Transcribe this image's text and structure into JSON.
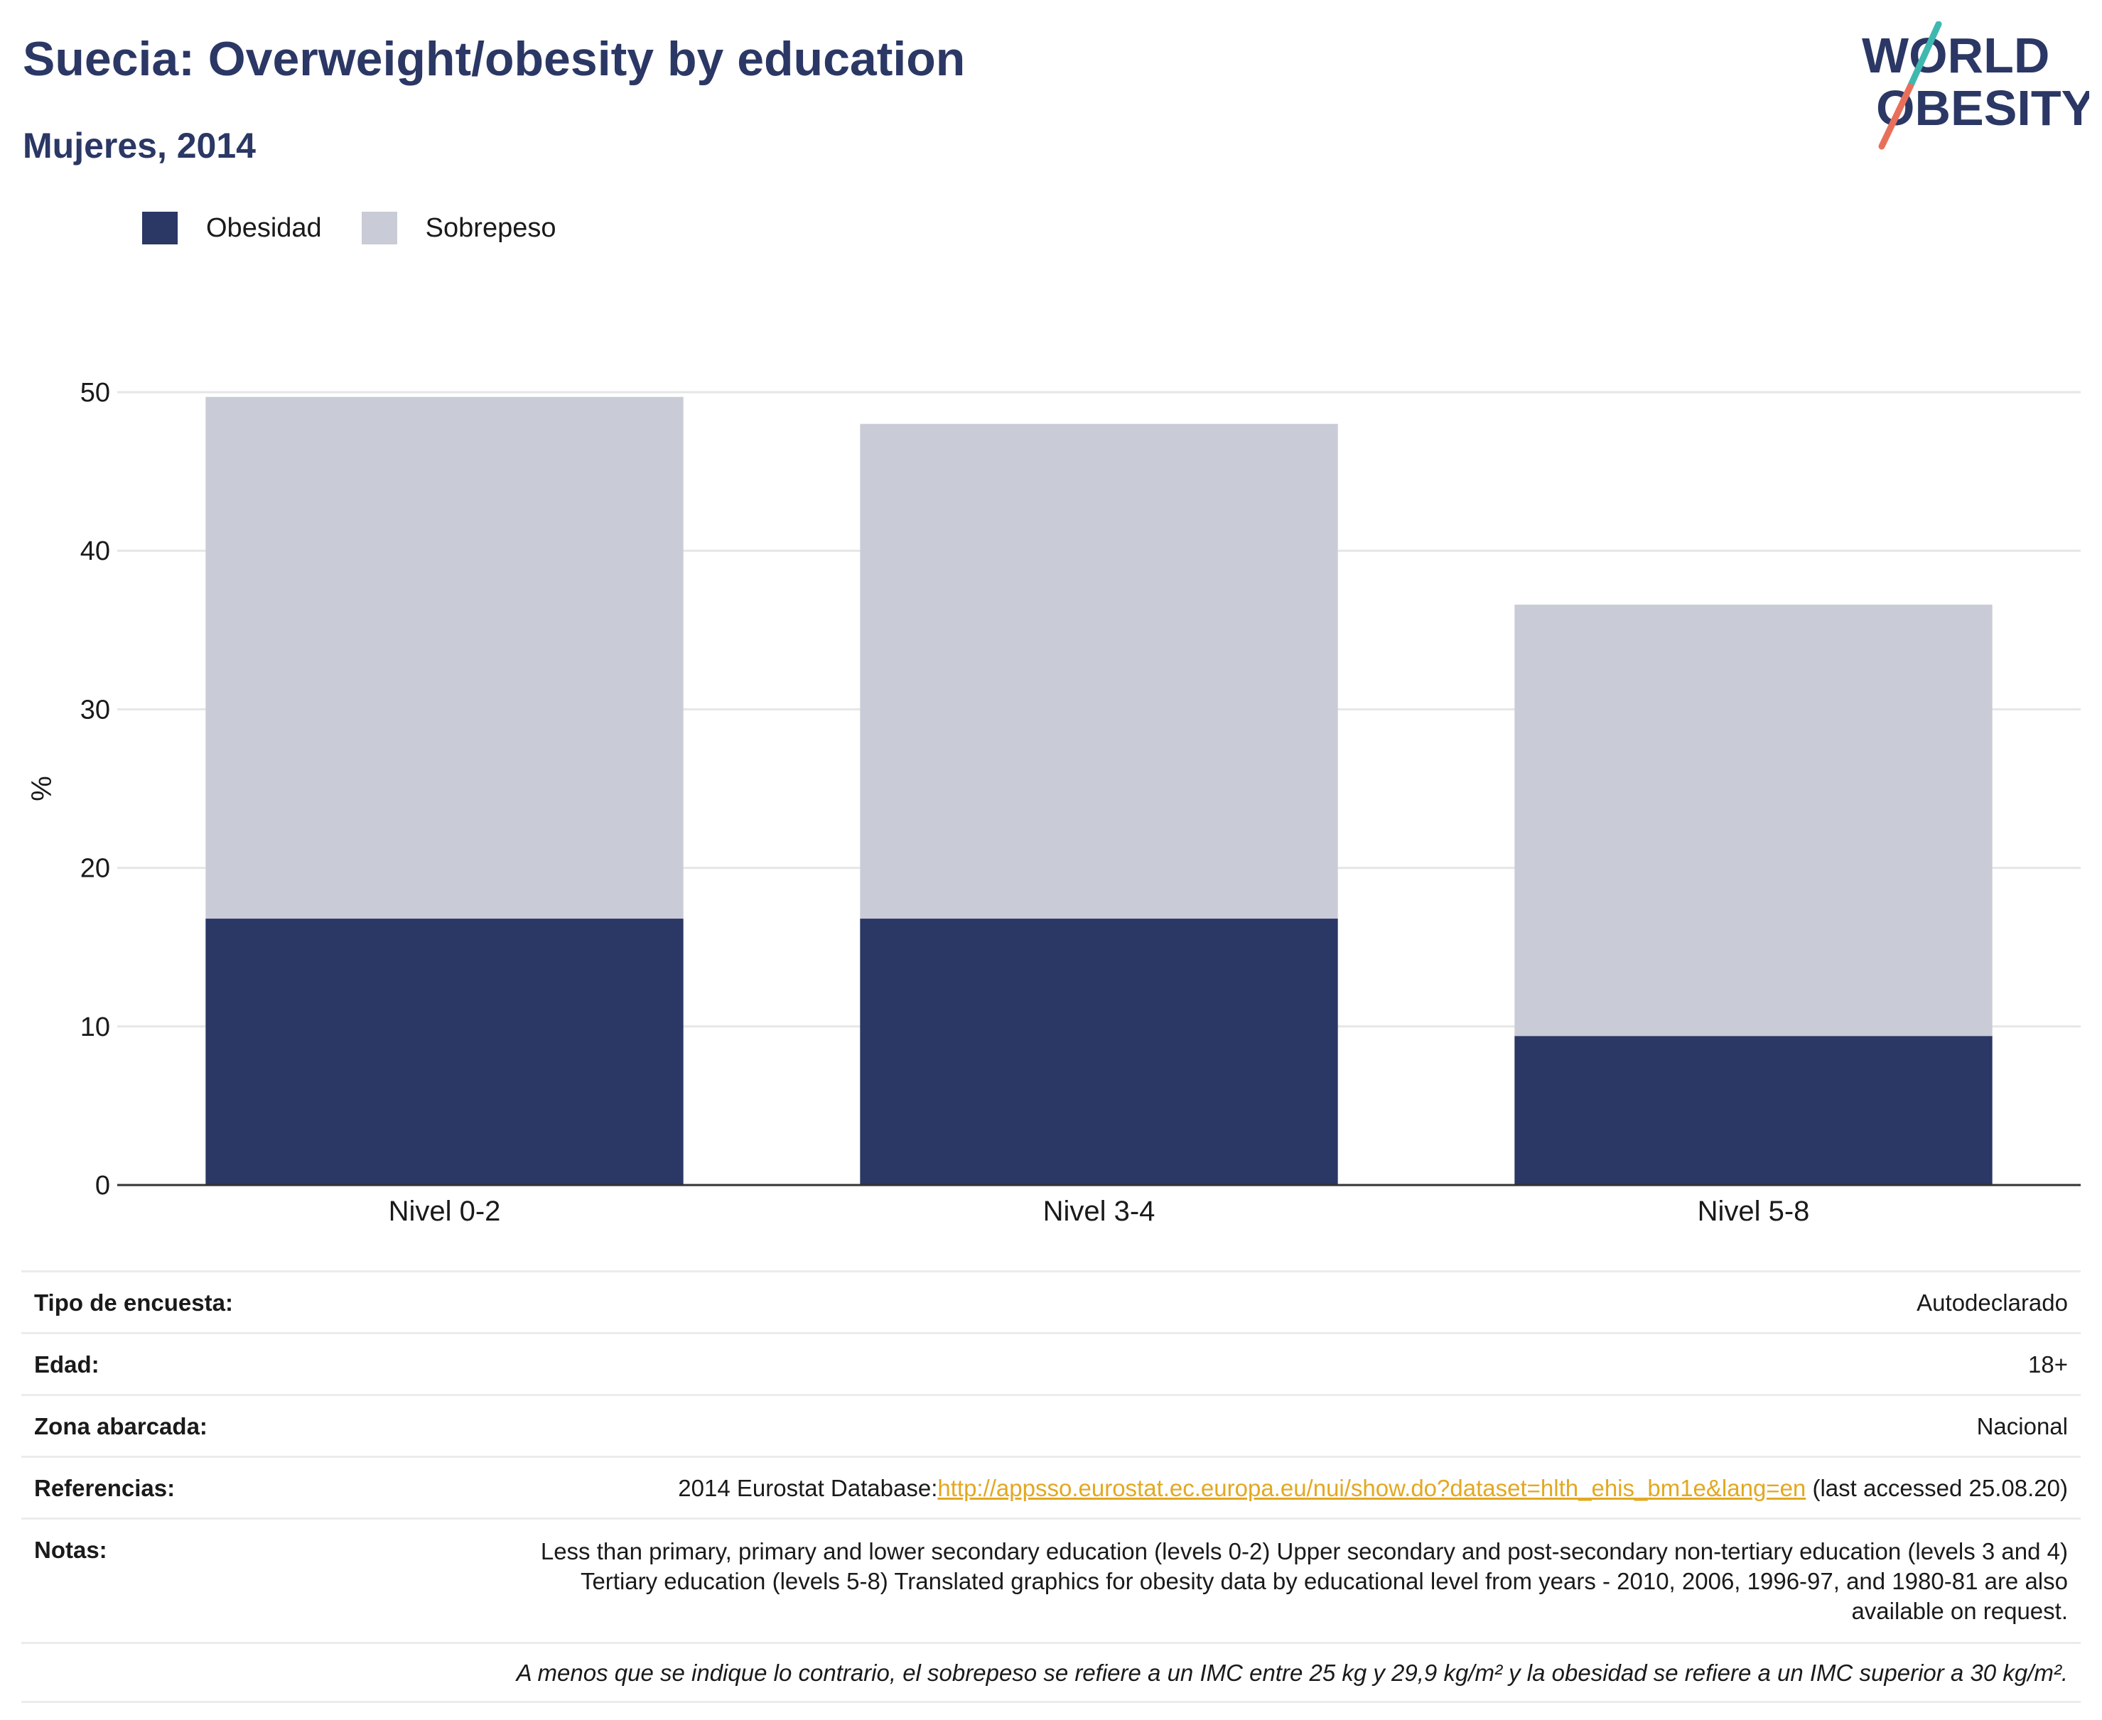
{
  "header": {
    "title": "Suecia: Overweight/obesity by education",
    "subtitle": "Mujeres, 2014"
  },
  "logo": {
    "line1": "WORLD",
    "line2": "OBESITY",
    "colors": {
      "text": "#2b3764",
      "slash_teal": "#3fb8b0",
      "slash_coral": "#e8705b"
    }
  },
  "colors": {
    "obesity": "#2b3764",
    "overweight": "#c9cbd7",
    "grid": "#e6e6e6",
    "axis": "#333333"
  },
  "chart_data": {
    "type": "bar",
    "stacked": true,
    "categories": [
      "Nivel 0-2",
      "Nivel 3-4",
      "Nivel 5-8"
    ],
    "series": [
      {
        "name": "Obesidad",
        "values": [
          16.8,
          16.8,
          9.4
        ]
      },
      {
        "name": "Sobrepeso",
        "values": [
          32.9,
          31.2,
          27.2
        ]
      }
    ],
    "title": "Suecia: Overweight/obesity by education",
    "subtitle": "Mujeres, 2014",
    "ylabel": "%",
    "ylim": [
      0,
      50
    ],
    "yticks": [
      0,
      10,
      20,
      30,
      40,
      50
    ],
    "grid": true,
    "legend": "top-left"
  },
  "meta": {
    "survey_type": {
      "label": "Tipo de encuesta:",
      "value": "Autodeclarado"
    },
    "age": {
      "label": "Edad:",
      "value": "18+"
    },
    "area": {
      "label": "Zona abarcada:",
      "value": "Nacional"
    },
    "references": {
      "label": "Referencias:",
      "prefix": "2014 Eurostat Database:",
      "link": "http://appsso.eurostat.ec.europa.eu/nui/show.do?dataset=hlth_ehis_bm1e&lang=en",
      "suffix": " (last accessed 25.08.20)"
    },
    "notes": {
      "label": "Notas:",
      "value": "Less than primary, primary and lower secondary education (levels 0-2) Upper secondary and post-secondary non-tertiary education (levels 3 and 4) Tertiary education (levels 5-8) Translated graphics for obesity data by educational level from years - 2010, 2006, 1996-97, and 1980-81 are also available on request."
    },
    "footnote": "A menos que se indique lo contrario, el sobrepeso se refiere a un IMC entre 25 kg y 29,9 kg/m² y la obesidad se refiere a un IMC superior a 30 kg/m²."
  }
}
